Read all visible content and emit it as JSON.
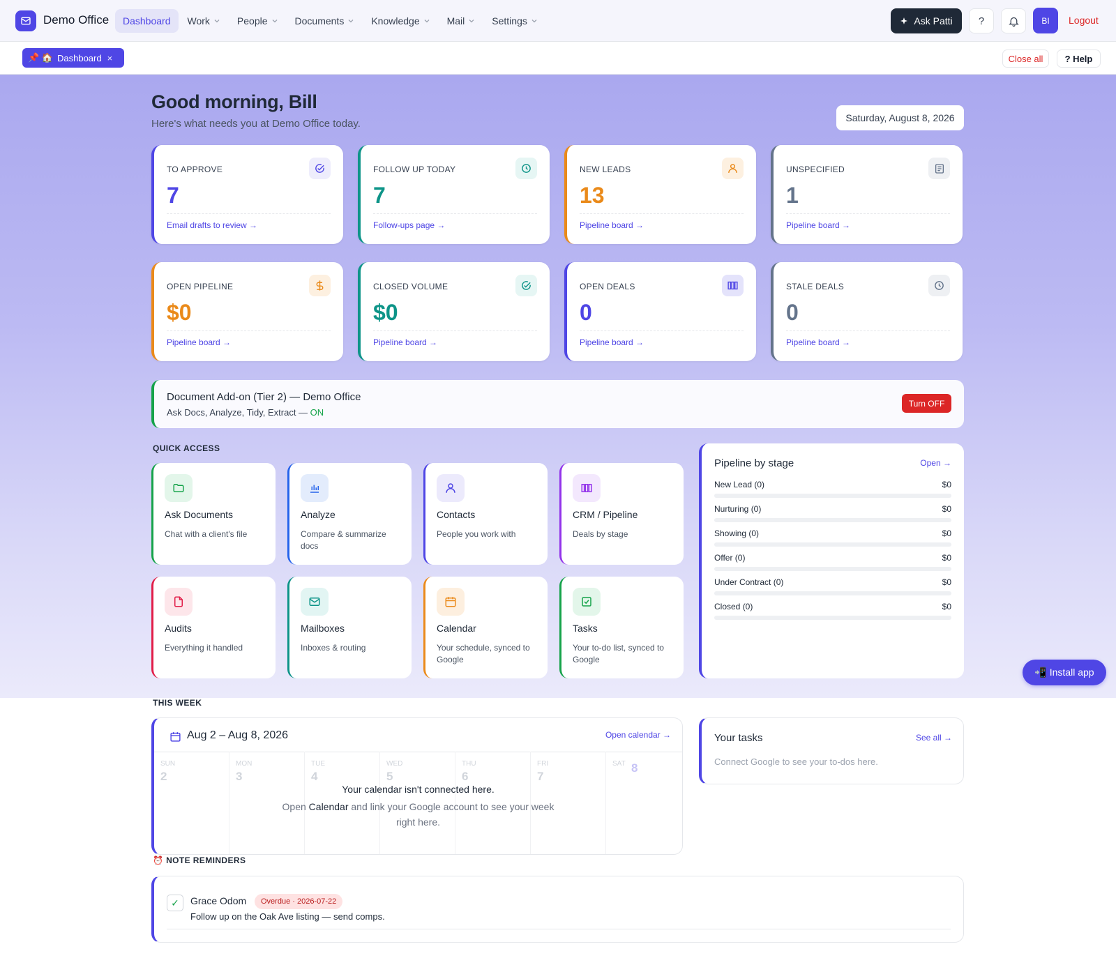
{
  "app": {
    "name": "Demo Office"
  },
  "nav": {
    "items": [
      {
        "label": "Dashboard"
      },
      {
        "label": "Work"
      },
      {
        "label": "People"
      },
      {
        "label": "Documents"
      },
      {
        "label": "Knowledge"
      },
      {
        "label": "Mail"
      },
      {
        "label": "Settings"
      }
    ],
    "ask_label": "Ask Patti",
    "help_glyph": "?",
    "avatar_initials": "BI",
    "logout_label": "Logout"
  },
  "tabs": {
    "active_tab": {
      "icons": "📌 🏠",
      "label": "Dashboard",
      "close": "×"
    },
    "close_all": "Close all",
    "help": "? Help"
  },
  "header": {
    "greeting": "Good morning, Bill",
    "subtitle": "Here's what needs you at Demo Office today.",
    "date": "Saturday, August 8, 2026"
  },
  "stats": [
    {
      "label": "TO APPROVE",
      "value": "7",
      "link": "Email drafts to review →",
      "icon": "check-badge-icon",
      "color": "#4f46e5"
    },
    {
      "label": "FOLLOW UP TODAY",
      "value": "7",
      "link": "Follow-ups page →",
      "icon": "clock-icon",
      "color": "#0d9488"
    },
    {
      "label": "NEW LEADS",
      "value": "13",
      "link": "Pipeline board →",
      "icon": "user-icon",
      "color": "#ea8a1a"
    },
    {
      "label": "UNSPECIFIED",
      "value": "1",
      "link": "Pipeline board →",
      "icon": "document-icon",
      "color": "#64748b"
    },
    {
      "label": "OPEN PIPELINE",
      "value": "$0",
      "link": "Pipeline board →",
      "icon": "dollar-icon",
      "color": "#ea8a1a"
    },
    {
      "label": "CLOSED VOLUME",
      "value": "$0",
      "link": "Pipeline board →",
      "icon": "check-badge-icon",
      "color": "#0d9488"
    },
    {
      "label": "OPEN DEALS",
      "value": "0",
      "link": "Pipeline board →",
      "icon": "kanban-icon",
      "color": "#4f46e5"
    },
    {
      "label": "STALE DEALS",
      "value": "0",
      "link": "Pipeline board →",
      "icon": "clock-icon",
      "color": "#64748b"
    }
  ],
  "addon": {
    "title": "Document Add-on (Tier 2) — Demo Office",
    "features": "Ask Docs, Analyze, Tidy, Extract —",
    "status": "ON",
    "button": "Turn OFF"
  },
  "quick_access": {
    "heading": "QUICK ACCESS",
    "items": [
      {
        "title": "Ask Documents",
        "desc": "Chat with a client's file",
        "icon": "folder-icon",
        "color": "#16a34a"
      },
      {
        "title": "Analyze",
        "desc": "Compare & summarize docs",
        "icon": "bar-chart-icon",
        "color": "#2563eb"
      },
      {
        "title": "Contacts",
        "desc": "People you work with",
        "icon": "user-icon",
        "color": "#4f46e5"
      },
      {
        "title": "CRM / Pipeline",
        "desc": "Deals by stage",
        "icon": "kanban-icon",
        "color": "#9333ea"
      },
      {
        "title": "Audits",
        "desc": "Everything it handled",
        "icon": "file-icon",
        "color": "#e11d48"
      },
      {
        "title": "Mailboxes",
        "desc": "Inboxes & routing",
        "icon": "mail-icon",
        "color": "#0d9488"
      },
      {
        "title": "Calendar",
        "desc": "Your schedule, synced to Google",
        "icon": "calendar-icon",
        "color": "#ea8a1a"
      },
      {
        "title": "Tasks",
        "desc": "Your to-do list, synced to Google",
        "icon": "check-square-icon",
        "color": "#16a34a"
      }
    ]
  },
  "pipeline": {
    "title": "Pipeline by stage",
    "open_link": "Open →",
    "stages": [
      {
        "label": "New Lead (0)",
        "value": "$0",
        "fill": 0
      },
      {
        "label": "Nurturing (0)",
        "value": "$0",
        "fill": 0
      },
      {
        "label": "Showing (0)",
        "value": "$0",
        "fill": 0
      },
      {
        "label": "Offer (0)",
        "value": "$0",
        "fill": 0
      },
      {
        "label": "Under Contract (0)",
        "value": "$0",
        "fill": 0
      },
      {
        "label": "Closed (0)",
        "value": "$0",
        "fill": 0
      }
    ]
  },
  "install_label": "📲 Install app",
  "week": {
    "heading": "THIS WEEK",
    "range": "Aug 2 – Aug 8, 2026",
    "open_link": "Open calendar →",
    "days": [
      {
        "name": "SUN",
        "date": "2"
      },
      {
        "name": "MON",
        "date": "3"
      },
      {
        "name": "TUE",
        "date": "4"
      },
      {
        "name": "WED",
        "date": "5"
      },
      {
        "name": "THU",
        "date": "6"
      },
      {
        "name": "FRI",
        "date": "7"
      },
      {
        "name": "SAT",
        "date": "8"
      }
    ],
    "message": "Your calendar isn't connected here.",
    "hint_before": "Open",
    "hint_link": "Calendar",
    "hint_after": "and link your Google account to see your week right here."
  },
  "tasks": {
    "title": "Your tasks",
    "see_all": "See all →",
    "empty": "Connect Google to see your to-dos here."
  },
  "reminders": {
    "heading": "⏰ NOTE REMINDERS",
    "items": [
      {
        "name": "Grace Odom",
        "badge": "Overdue · 2026-07-22",
        "text": "Follow up on the Oak Ave listing — send comps.",
        "check": "✓"
      }
    ]
  }
}
